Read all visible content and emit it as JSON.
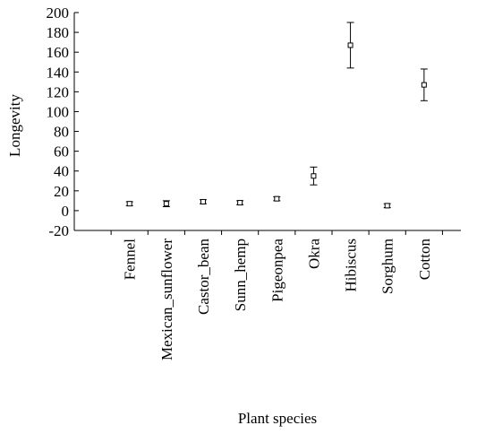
{
  "chart_data": {
    "type": "errorbar",
    "title": null,
    "x_label": "Plant species",
    "y_label": "Longevity",
    "categories": [
      "Fennel",
      "Mexican_sunflower",
      "Castor_bean",
      "Sunn_hemp",
      "Pigeonpea",
      "Okra",
      "Hibiscus",
      "Sorghum",
      "Cotton"
    ],
    "values": [
      7,
      7,
      9,
      8,
      12,
      35,
      167,
      5,
      127
    ],
    "errors": [
      2,
      3,
      2,
      2,
      2,
      9,
      23,
      2,
      16
    ],
    "color": "#000000",
    "ylim": [
      -20,
      200
    ],
    "yticks": [
      -20,
      0,
      20,
      40,
      60,
      80,
      100,
      120,
      140,
      160,
      180,
      200
    ]
  }
}
